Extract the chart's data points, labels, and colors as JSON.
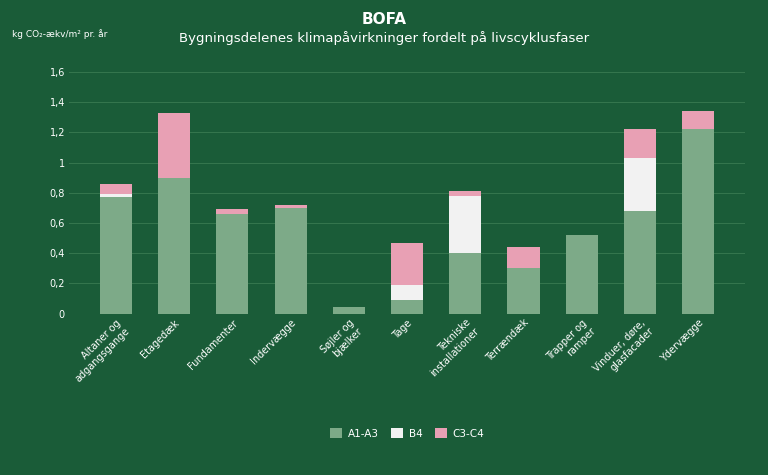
{
  "title": "BOFA",
  "subtitle": "Bygningsdelenes klimapåvirkninger fordelt på livscyklusfaser",
  "ylabel": "kg CO₂-ækv/m² pr. år",
  "background_color": "#1a5c38",
  "categories": [
    "Altaner og\nadgangsgange",
    "Etagedæk",
    "Fundamenter",
    "Indervægge",
    "Søjler og\nbjælker",
    "Tage",
    "Tekniske\ninstallationer",
    "Terrændæk",
    "Trapper og\nramper",
    "Vinduer, døre,\nglasfacader",
    "Ydervægge"
  ],
  "A1A3": [
    0.77,
    0.9,
    0.66,
    0.7,
    0.04,
    0.09,
    0.4,
    0.3,
    0.52,
    0.68,
    1.22
  ],
  "B4": [
    0.02,
    0.0,
    0.0,
    0.0,
    0.0,
    0.1,
    0.38,
    0.0,
    0.0,
    0.35,
    0.0
  ],
  "C3C4": [
    0.07,
    0.43,
    0.03,
    0.02,
    0.0,
    0.28,
    0.03,
    0.14,
    0.0,
    0.19,
    0.12
  ],
  "color_A1A3": "#7daa88",
  "color_B4": "#f2f2f2",
  "color_C3C4": "#e8a0b4",
  "ylim": [
    0,
    1.7
  ],
  "yticks": [
    0,
    0.2,
    0.4,
    0.6,
    0.8,
    1.0,
    1.2,
    1.4,
    1.6
  ],
  "ytick_labels": [
    "0",
    "0,2",
    "0,4",
    "0,6",
    "0,8",
    "1",
    "1,2",
    "1,4",
    "1,6"
  ],
  "text_color": "#ffffff",
  "grid_color": "#3a7a52",
  "title_fontsize": 11,
  "subtitle_fontsize": 9.5,
  "tick_fontsize": 7,
  "ylabel_fontsize": 6.5,
  "legend_fontsize": 7.5,
  "bar_width": 0.55
}
